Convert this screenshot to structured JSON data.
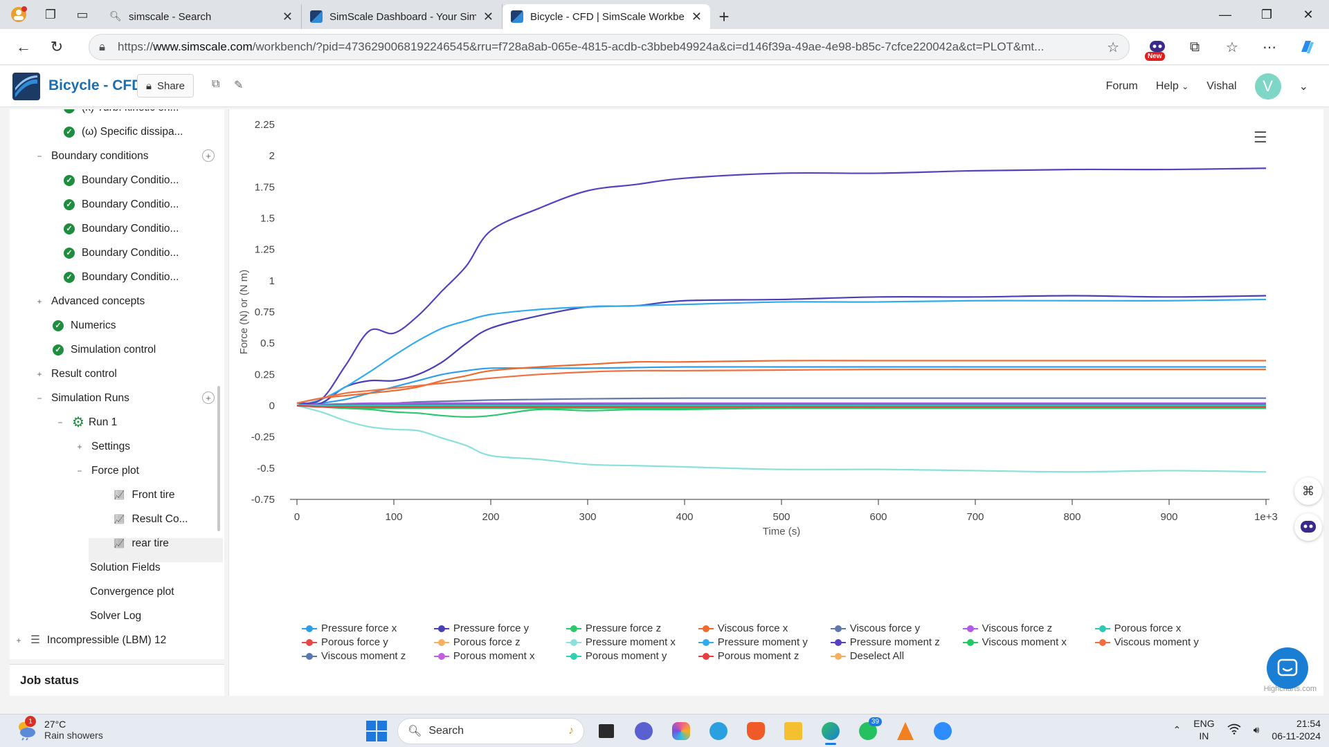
{
  "browser": {
    "tabs": [
      {
        "title": "simscale - Search",
        "active": false
      },
      {
        "title": "SimScale Dashboard - Your Simul",
        "active": false
      },
      {
        "title": "Bicycle - CFD | SimScale Workben",
        "active": true
      }
    ],
    "url_prefix": "https://",
    "url_domain": "www.simscale.com",
    "url_rest": "/workbench/?pid=4736290068192246545&rru=f728a8ab-065e-4815-acdb-c3bbeb49924a&ci=d146f39a-49ae-4e98-b85c-7cfce220042a&ct=PLOT&mt...",
    "new_badge": "New"
  },
  "header": {
    "project_title": "Bicycle - CFD",
    "share_label": "Share",
    "forum_label": "Forum",
    "help_label": "Help",
    "user_name": "Vishal",
    "avatar_letter": "V"
  },
  "sidebar": {
    "items": [
      {
        "label": "(k) Turb. kinetic en...",
        "indent": 2,
        "icon": "check"
      },
      {
        "label": "(ω) Specific dissipa...",
        "indent": 2,
        "icon": "check"
      },
      {
        "label": "Boundary conditions",
        "indent": 1,
        "icon": "minus",
        "plus": true
      },
      {
        "label": "Boundary Conditio...",
        "indent": 2,
        "icon": "check"
      },
      {
        "label": "Boundary Conditio...",
        "indent": 2,
        "icon": "check"
      },
      {
        "label": "Boundary Conditio...",
        "indent": 2,
        "icon": "check"
      },
      {
        "label": "Boundary Conditio...",
        "indent": 2,
        "icon": "check"
      },
      {
        "label": "Boundary Conditio...",
        "indent": 2,
        "icon": "check"
      },
      {
        "label": "Advanced concepts",
        "indent": 1,
        "icon": "plus"
      },
      {
        "label": "Numerics",
        "indent": 1.5,
        "icon": "check"
      },
      {
        "label": "Simulation control",
        "indent": 1.5,
        "icon": "check"
      },
      {
        "label": "Result control",
        "indent": 1,
        "icon": "plus"
      },
      {
        "label": "Simulation Runs",
        "indent": 1,
        "icon": "minus",
        "plus": true
      },
      {
        "label": "Run 1",
        "indent": 2,
        "icon": "gear",
        "expander": "minus"
      },
      {
        "label": "Settings",
        "indent": 3,
        "icon": "plus"
      },
      {
        "label": "Force plot",
        "indent": 3,
        "icon": "minus"
      },
      {
        "label": "Front tire",
        "indent": 4,
        "icon": "plot"
      },
      {
        "label": "Result Co...",
        "indent": 4,
        "icon": "plot"
      },
      {
        "label": "rear tire",
        "indent": 4,
        "icon": "plot",
        "selected": true
      },
      {
        "label": "Solution Fields",
        "indent": 3,
        "icon": "none"
      },
      {
        "label": "Convergence plot",
        "indent": 3,
        "icon": "none"
      },
      {
        "label": "Solver Log",
        "indent": 3,
        "icon": "none"
      },
      {
        "label": "Incompressible (LBM) 12",
        "indent": 0,
        "icon": "plus-list"
      }
    ],
    "job_status_label": "Job status"
  },
  "chart_data": {
    "type": "line",
    "title": "",
    "xlabel": "Time (s)",
    "ylabel": "Force (N) or (N m)",
    "xlim": [
      0,
      1000
    ],
    "ylim": [
      -0.75,
      2.25
    ],
    "x_ticks": [
      "0",
      "100",
      "200",
      "300",
      "400",
      "500",
      "600",
      "700",
      "800",
      "900",
      "1e+3"
    ],
    "y_ticks": [
      "2.25",
      "2",
      "1.75",
      "1.5",
      "1.25",
      "1",
      "0.75",
      "0.5",
      "0.25",
      "0",
      "-0.25",
      "-0.5",
      "-0.75"
    ],
    "x": [
      0,
      25,
      50,
      75,
      100,
      125,
      150,
      175,
      200,
      250,
      300,
      350,
      400,
      500,
      600,
      700,
      800,
      900,
      1000
    ],
    "series": [
      {
        "name": "Pressure force x",
        "color": "#2f9ee8",
        "values": [
          0,
          0.02,
          0.05,
          0.1,
          0.15,
          0.2,
          0.25,
          0.28,
          0.3,
          0.3,
          0.3,
          0.305,
          0.31,
          0.31,
          0.31,
          0.31,
          0.31,
          0.31,
          0.31
        ]
      },
      {
        "name": "Pressure force y",
        "color": "#4b3fb8",
        "values": [
          0,
          0.02,
          0.15,
          0.2,
          0.2,
          0.25,
          0.35,
          0.5,
          0.62,
          0.72,
          0.79,
          0.8,
          0.84,
          0.85,
          0.87,
          0.87,
          0.88,
          0.87,
          0.88
        ]
      },
      {
        "name": "Pressure force z",
        "color": "#2cc96c",
        "values": [
          0.02,
          0.0,
          -0.02,
          -0.03,
          -0.05,
          -0.06,
          -0.08,
          -0.09,
          -0.08,
          -0.03,
          -0.04,
          -0.03,
          -0.03,
          -0.02,
          -0.02,
          -0.02,
          -0.02,
          -0.02,
          -0.02
        ]
      },
      {
        "name": "Viscous force x",
        "color": "#f06a2e",
        "values": [
          0.02,
          0.06,
          0.08,
          0.1,
          0.12,
          0.15,
          0.2,
          0.24,
          0.28,
          0.31,
          0.33,
          0.35,
          0.35,
          0.36,
          0.36,
          0.36,
          0.36,
          0.36,
          0.36
        ]
      },
      {
        "name": "Viscous force y",
        "color": "#5f7aa8",
        "values": [
          0,
          0.0,
          0.01,
          0.015,
          0.02,
          0.03,
          0.035,
          0.04,
          0.045,
          0.05,
          0.055,
          0.058,
          0.06,
          0.06,
          0.06,
          0.06,
          0.06,
          0.06,
          0.06
        ]
      },
      {
        "name": "Viscous force z",
        "color": "#b458e8",
        "values": [
          0,
          0.01,
          0.015,
          0.02,
          0.02,
          0.02,
          0.02,
          0.02,
          0.02,
          0.02,
          0.02,
          0.02,
          0.02,
          0.02,
          0.02,
          0.02,
          0.02,
          0.02,
          0.02
        ]
      },
      {
        "name": "Porous force x",
        "color": "#2cc9b8",
        "values": [
          0,
          0,
          0,
          0,
          0,
          0,
          0,
          0,
          0,
          0,
          0,
          0,
          0,
          0,
          0,
          0,
          0,
          0,
          0
        ]
      },
      {
        "name": "Porous force y",
        "color": "#e84848",
        "values": [
          0,
          -0.005,
          -0.005,
          -0.005,
          -0.005,
          -0.005,
          -0.005,
          -0.005,
          -0.005,
          -0.005,
          -0.005,
          -0.005,
          -0.005,
          -0.005,
          -0.005,
          -0.005,
          -0.005,
          -0.005,
          -0.005
        ]
      },
      {
        "name": "Porous force z",
        "color": "#f5b060",
        "values": [
          0,
          0,
          0,
          0,
          0,
          0,
          0,
          0,
          0,
          0,
          0,
          0,
          0,
          0,
          0,
          0,
          0,
          0,
          0
        ]
      },
      {
        "name": "Pressure moment x",
        "color": "#8ae0da",
        "values": [
          0,
          -0.05,
          -0.12,
          -0.17,
          -0.19,
          -0.2,
          -0.26,
          -0.32,
          -0.4,
          -0.43,
          -0.47,
          -0.48,
          -0.49,
          -0.51,
          -0.51,
          -0.52,
          -0.53,
          -0.52,
          -0.53
        ]
      },
      {
        "name": "Pressure moment y",
        "color": "#32aaf0",
        "values": [
          0,
          0.05,
          0.15,
          0.27,
          0.4,
          0.52,
          0.62,
          0.68,
          0.73,
          0.77,
          0.79,
          0.8,
          0.81,
          0.83,
          0.83,
          0.84,
          0.84,
          0.84,
          0.85
        ]
      },
      {
        "name": "Pressure moment z",
        "color": "#5a3fc0",
        "values": [
          0.02,
          0.05,
          0.32,
          0.6,
          0.58,
          0.72,
          0.92,
          1.12,
          1.4,
          1.58,
          1.72,
          1.77,
          1.82,
          1.86,
          1.86,
          1.88,
          1.89,
          1.89,
          1.9
        ]
      },
      {
        "name": "Viscous moment x",
        "color": "#22c866",
        "values": [
          0,
          -0.01,
          -0.02,
          -0.02,
          -0.02,
          -0.02,
          -0.02,
          -0.02,
          -0.02,
          -0.02,
          -0.02,
          -0.02,
          -0.02,
          -0.02,
          -0.02,
          -0.02,
          -0.02,
          -0.02,
          -0.02
        ]
      },
      {
        "name": "Viscous moment y",
        "color": "#f07040",
        "values": [
          0.02,
          0.06,
          0.1,
          0.12,
          0.14,
          0.16,
          0.18,
          0.2,
          0.22,
          0.25,
          0.27,
          0.28,
          0.28,
          0.285,
          0.29,
          0.29,
          0.29,
          0.29,
          0.29
        ]
      },
      {
        "name": "Viscous moment z",
        "color": "#5878b0",
        "values": [
          0,
          0.005,
          0.01,
          0.01,
          0.01,
          0.01,
          0.01,
          0.01,
          0.01,
          0.01,
          0.01,
          0.01,
          0.01,
          0.01,
          0.01,
          0.01,
          0.01,
          0.01,
          0.01
        ]
      },
      {
        "name": "Porous moment x",
        "color": "#c060e0",
        "values": [
          0,
          0,
          0,
          0,
          0,
          0,
          0,
          0,
          0,
          0,
          0,
          0,
          0,
          0,
          0,
          0,
          0,
          0,
          0
        ]
      },
      {
        "name": "Porous moment y",
        "color": "#30d0b0",
        "values": [
          0,
          0,
          0,
          0,
          0,
          0,
          0,
          0,
          0,
          0,
          0,
          0,
          0,
          0,
          0,
          0,
          0,
          0,
          0
        ]
      },
      {
        "name": "Porous moment z",
        "color": "#e84040",
        "values": [
          0,
          -0.01,
          -0.01,
          -0.01,
          -0.01,
          -0.01,
          -0.01,
          -0.01,
          -0.01,
          -0.01,
          -0.01,
          -0.01,
          -0.01,
          -0.01,
          -0.01,
          -0.01,
          -0.01,
          -0.01,
          -0.01
        ]
      }
    ],
    "legend_extra": "Deselect All",
    "legend_extra_color": "#f5b060",
    "credit": "Highcharts.com",
    "grid": false,
    "legend_placement": "bottom"
  },
  "taskbar": {
    "weather_badge": "1",
    "temperature": "27°C",
    "weather_desc": "Rain showers",
    "search_label": "Search",
    "whatsapp_badge": "39",
    "lang_line1": "ENG",
    "lang_line2": "IN",
    "time": "21:54",
    "date": "06-11-2024"
  }
}
